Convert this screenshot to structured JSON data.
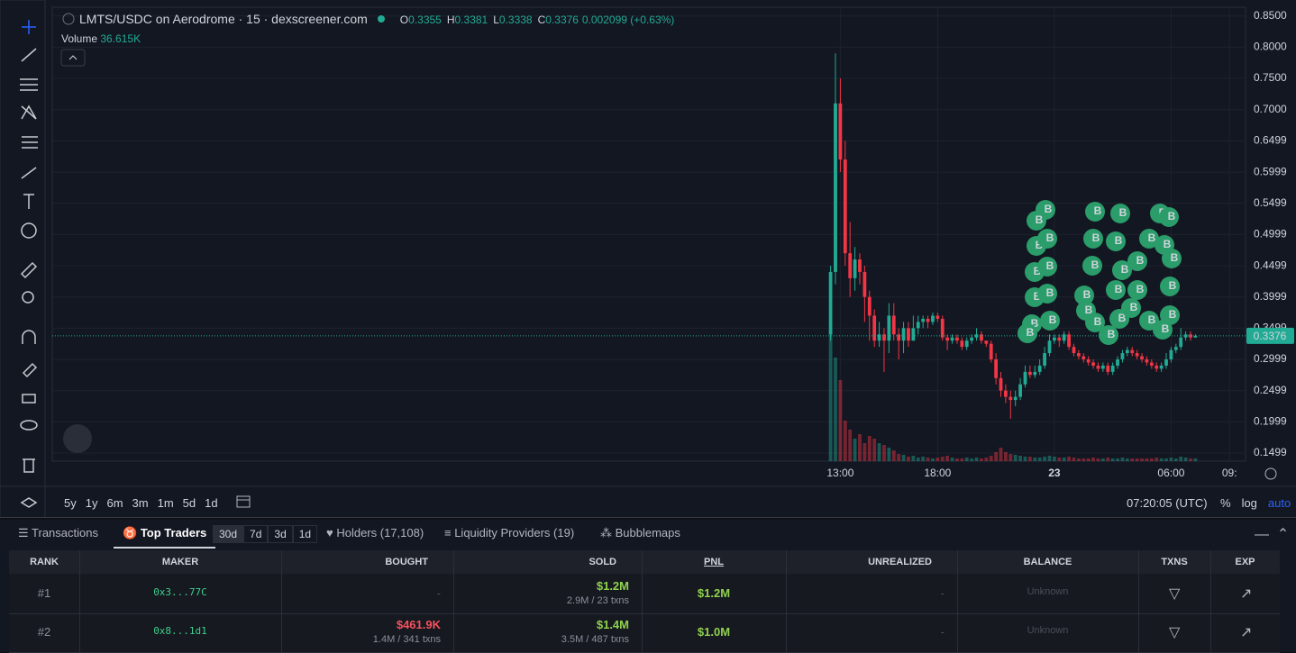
{
  "header": {
    "title": "LMTS/USDC on Aerodrome · 15 · dexscreener.com",
    "ohlc": [
      {
        "k": "O",
        "v": "0.3355"
      },
      {
        "k": "H",
        "v": "0.3381"
      },
      {
        "k": "L",
        "v": "0.3338"
      },
      {
        "k": "C",
        "v": "0.3376"
      }
    ],
    "change": "0.002099 (+0.63%)",
    "volume_label": "Volume",
    "volume_value": "36.615K"
  },
  "chart_data": {
    "type": "candlestick",
    "up_color": "#22ab94",
    "down_color": "#f23645",
    "grid": true,
    "xlim": [
      -160,
      85.3
    ],
    "xticks": [
      {
        "value": 2,
        "label": "13:00"
      },
      {
        "value": 22,
        "label": "18:00"
      },
      {
        "value": 46,
        "label": "23"
      },
      {
        "value": 70,
        "label": "06:00"
      },
      {
        "value": 82,
        "label": "09:"
      }
    ],
    "ylim": [
      0.137,
      0.864
    ],
    "yticks": [
      {
        "value": 0.85,
        "label": "0.8500"
      },
      {
        "value": 0.8,
        "label": "0.8000"
      },
      {
        "value": 0.75,
        "label": "0.7500"
      },
      {
        "value": 0.7,
        "label": "0.7000"
      },
      {
        "value": 0.6499,
        "label": "0.6499"
      },
      {
        "value": 0.5999,
        "label": "0.5999"
      },
      {
        "value": 0.5499,
        "label": "0.5499"
      },
      {
        "value": 0.4999,
        "label": "0.4999"
      },
      {
        "value": 0.4499,
        "label": "0.4499"
      },
      {
        "value": 0.3999,
        "label": "0.3999"
      },
      {
        "value": 0.3499,
        "label": "0.3499"
      },
      {
        "value": 0.2999,
        "label": "0.2999"
      },
      {
        "value": 0.2499,
        "label": "0.2499"
      },
      {
        "value": 0.1999,
        "label": "0.1999"
      },
      {
        "value": 0.1499,
        "label": "0.1499"
      }
    ],
    "last_price": 0.3376,
    "marker_label": "B",
    "volume_lim": [
      0,
      1800
    ],
    "open": [
      0.34,
      0.44,
      0.71,
      0.62,
      0.47,
      0.43,
      0.46,
      0.44,
      0.4,
      0.37,
      0.33,
      0.34,
      0.33,
      0.37,
      0.34,
      0.33,
      0.35,
      0.33,
      0.35,
      0.36,
      0.365,
      0.36,
      0.37,
      0.365,
      0.335,
      0.33,
      0.335,
      0.33,
      0.32,
      0.33,
      0.335,
      0.34,
      0.33,
      0.325,
      0.3,
      0.27,
      0.25,
      0.24,
      0.235,
      0.24,
      0.26,
      0.28,
      0.275,
      0.28,
      0.29,
      0.31,
      0.33,
      0.335,
      0.33,
      0.34,
      0.32,
      0.31,
      0.305,
      0.3,
      0.295,
      0.29,
      0.285,
      0.29,
      0.28,
      0.29,
      0.3,
      0.31,
      0.315,
      0.31,
      0.305,
      0.3,
      0.295,
      0.29,
      0.285,
      0.29,
      0.3,
      0.315,
      0.32,
      0.335,
      0.34,
      0.335
    ],
    "high": [
      0.45,
      0.79,
      0.75,
      0.65,
      0.52,
      0.48,
      0.47,
      0.45,
      0.41,
      0.38,
      0.36,
      0.35,
      0.39,
      0.39,
      0.35,
      0.36,
      0.36,
      0.37,
      0.37,
      0.37,
      0.37,
      0.375,
      0.375,
      0.37,
      0.34,
      0.34,
      0.34,
      0.335,
      0.335,
      0.34,
      0.35,
      0.345,
      0.33,
      0.33,
      0.31,
      0.28,
      0.26,
      0.25,
      0.25,
      0.27,
      0.29,
      0.29,
      0.29,
      0.3,
      0.32,
      0.34,
      0.34,
      0.34,
      0.345,
      0.345,
      0.325,
      0.315,
      0.31,
      0.305,
      0.3,
      0.295,
      0.295,
      0.295,
      0.295,
      0.305,
      0.315,
      0.32,
      0.32,
      0.315,
      0.31,
      0.305,
      0.3,
      0.295,
      0.295,
      0.31,
      0.32,
      0.325,
      0.35,
      0.345,
      0.345,
      0.34
    ],
    "low": [
      0.33,
      0.42,
      0.6,
      0.45,
      0.4,
      0.41,
      0.42,
      0.36,
      0.33,
      0.32,
      0.32,
      0.28,
      0.31,
      0.33,
      0.3,
      0.31,
      0.32,
      0.33,
      0.34,
      0.35,
      0.35,
      0.355,
      0.36,
      0.33,
      0.315,
      0.325,
      0.325,
      0.315,
      0.315,
      0.325,
      0.33,
      0.325,
      0.32,
      0.295,
      0.26,
      0.24,
      0.23,
      0.205,
      0.225,
      0.235,
      0.255,
      0.27,
      0.27,
      0.275,
      0.285,
      0.305,
      0.325,
      0.32,
      0.325,
      0.315,
      0.305,
      0.3,
      0.295,
      0.29,
      0.285,
      0.28,
      0.28,
      0.275,
      0.275,
      0.285,
      0.295,
      0.305,
      0.305,
      0.3,
      0.295,
      0.29,
      0.285,
      0.28,
      0.28,
      0.285,
      0.295,
      0.31,
      0.315,
      0.33,
      0.33,
      0.335
    ],
    "close": [
      0.44,
      0.71,
      0.62,
      0.47,
      0.43,
      0.46,
      0.44,
      0.4,
      0.37,
      0.33,
      0.34,
      0.33,
      0.37,
      0.34,
      0.33,
      0.35,
      0.33,
      0.35,
      0.36,
      0.365,
      0.36,
      0.37,
      0.365,
      0.335,
      0.33,
      0.335,
      0.33,
      0.32,
      0.33,
      0.335,
      0.34,
      0.33,
      0.325,
      0.3,
      0.27,
      0.25,
      0.24,
      0.235,
      0.24,
      0.26,
      0.28,
      0.275,
      0.28,
      0.29,
      0.31,
      0.33,
      0.335,
      0.33,
      0.34,
      0.32,
      0.31,
      0.305,
      0.3,
      0.295,
      0.29,
      0.285,
      0.29,
      0.28,
      0.29,
      0.3,
      0.31,
      0.315,
      0.31,
      0.305,
      0.3,
      0.295,
      0.29,
      0.285,
      0.29,
      0.3,
      0.315,
      0.32,
      0.335,
      0.34,
      0.335,
      0.3376
    ],
    "volume": [
      1740,
      1380,
      1080,
      540,
      420,
      300,
      360,
      240,
      336,
      300,
      240,
      216,
      180,
      144,
      96,
      84,
      60,
      72,
      48,
      60,
      48,
      36,
      48,
      60,
      72,
      48,
      36,
      36,
      48,
      36,
      48,
      36,
      48,
      72,
      120,
      180,
      120,
      96,
      84,
      72,
      60,
      60,
      48,
      48,
      60,
      72,
      60,
      48,
      48,
      60,
      48,
      36,
      36,
      36,
      48,
      36,
      36,
      48,
      36,
      36,
      48,
      36,
      36,
      36,
      36,
      36,
      36,
      48,
      36,
      36,
      48,
      36,
      60,
      48,
      36,
      36.615
    ]
  },
  "range_buttons": [
    "5y",
    "1y",
    "6m",
    "3m",
    "1m",
    "5d",
    "1d"
  ],
  "clock": "07:20:05 (UTC)",
  "scale_options": [
    "%",
    "log",
    "auto"
  ],
  "tabs": {
    "transactions": "Transactions",
    "top_traders": "Top Traders",
    "periods": [
      "30d",
      "7d",
      "3d",
      "1d"
    ],
    "holders": "Holders (17,108)",
    "liquidity": "Liquidity Providers (19)",
    "bubblemaps": "Bubblemaps"
  },
  "table": {
    "columns": [
      "RANK",
      "MAKER",
      "BOUGHT",
      "SOLD",
      "PNL",
      "UNREALIZED",
      "BALANCE",
      "TXNS",
      "EXP"
    ],
    "rows": [
      {
        "rank": "#1",
        "maker": "0x3...77C",
        "bought": "-",
        "sold": "$1.2M",
        "sold_detail": "2.9M / 23 txns",
        "pnl": "$1.2M",
        "unrealized": "-",
        "balance": "Unknown"
      },
      {
        "rank": "#2",
        "maker": "0x8...1d1",
        "bought": "$461.9K",
        "bought_detail": "1.4M / 341 txns",
        "sold": "$1.4M",
        "sold_detail": "3.5M / 487 txns",
        "pnl": "$1.0M",
        "unrealized": "-",
        "balance": "Unknown"
      }
    ]
  }
}
